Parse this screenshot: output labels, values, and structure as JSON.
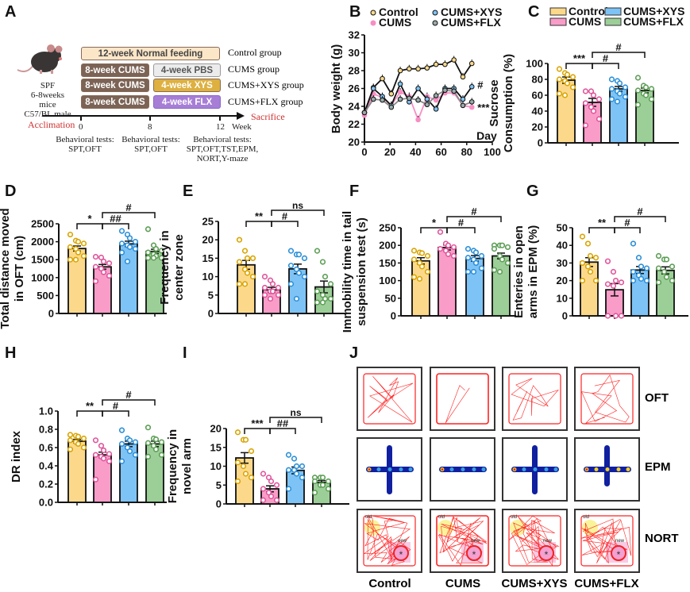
{
  "panel_labels": [
    "A",
    "B",
    "C",
    "D",
    "E",
    "F",
    "G",
    "H",
    "I",
    "J"
  ],
  "colors": {
    "Control": "#FCD98A",
    "CUMS": "#F99CC8",
    "CUMS+XYS": "#7EC3F5",
    "CUMS+FLX": "#9CCF98",
    "Control_dot": "#D9A400",
    "CUMS_dot": "#E0559B",
    "XYS_dot": "#2A8FD8",
    "FLX_dot": "#5C9E55"
  },
  "schematic": {
    "mouse_info": [
      "SPF",
      "6-8weeks mice",
      "C57/BL male"
    ],
    "rows": [
      {
        "boxes": [
          "12-week Normal feeding"
        ],
        "group": "Control group"
      },
      {
        "boxes": [
          "8-week CUMS",
          "4-week PBS"
        ],
        "group": "CUMS group"
      },
      {
        "boxes": [
          "8-week CUMS",
          "4-week XYS"
        ],
        "group": "CUMS+XYS group"
      },
      {
        "boxes": [
          "8-week CUMS",
          "4-week FLX"
        ],
        "group": "CUMS+FLX group"
      }
    ],
    "timeline": {
      "start": "Acclimation",
      "end": "Sacrifice",
      "ticks": [
        "0",
        "8",
        "12"
      ],
      "unit": "Week"
    },
    "tests": [
      [
        "Behavioral tests:",
        "SPT,OFT"
      ],
      [
        "Behavioral tests:",
        "SPT,OFT"
      ],
      [
        "Behavioral tests:",
        "SPT,OFT,TST,EPM,",
        "NORT,Y-maze"
      ]
    ]
  },
  "chart_data": [
    {
      "panel": "B",
      "type": "line",
      "xlabel": "Day",
      "ylabel": "Body weight (g)",
      "xlim": [
        0,
        100
      ],
      "xticks": [
        0,
        20,
        40,
        60,
        80,
        100
      ],
      "ylim": [
        20,
        32
      ],
      "yticks": [
        20,
        22,
        24,
        26,
        28,
        30,
        32
      ],
      "x": [
        0,
        7,
        14,
        21,
        28,
        35,
        42,
        49,
        56,
        63,
        70,
        77,
        84
      ],
      "series": [
        {
          "name": "Control",
          "values": [
            23.3,
            26.1,
            27.1,
            25.4,
            28.0,
            28.2,
            28.2,
            28.3,
            28.7,
            28.7,
            29.2,
            27.3,
            28.8
          ]
        },
        {
          "name": "CUMS",
          "values": [
            23.0,
            25.4,
            25.0,
            24.1,
            25.6,
            25.1,
            22.5,
            25.1,
            24.7,
            25.5,
            25.5,
            24.1,
            23.9
          ]
        },
        {
          "name": "CUMS+XYS",
          "values": [
            23.3,
            26.0,
            25.1,
            24.1,
            26.5,
            24.5,
            26.0,
            24.8,
            23.7,
            26.0,
            26.0,
            24.8,
            26.2
          ]
        },
        {
          "name": "CUMS+FLX",
          "values": [
            23.3,
            24.8,
            24.7,
            23.9,
            24.8,
            24.9,
            24.7,
            24.2,
            25.2,
            25.8,
            25.7,
            24.1,
            24.5
          ]
        }
      ],
      "annotations": [
        {
          "series": "CUMS+XYS",
          "text": "#"
        },
        {
          "series": "CUMS",
          "text": "***"
        }
      ],
      "legend": "top"
    },
    {
      "panel": "C",
      "type": "bar",
      "categories": [
        "Control",
        "CUMS",
        "CUMS+XYS",
        "CUMS+FLX"
      ],
      "ylabel": [
        "Sucrose",
        "Consumption (%)"
      ],
      "ylim": [
        0,
        100
      ],
      "yticks": [
        0,
        20,
        40,
        60,
        80,
        100
      ],
      "values": [
        79,
        51,
        68,
        66
      ],
      "errors": [
        4,
        5,
        3,
        3
      ],
      "points": [
        [
          93,
          88,
          86,
          83,
          80,
          78,
          75,
          70,
          62,
          60
        ],
        [
          65,
          65,
          60,
          55,
          50,
          45,
          40,
          30,
          22
        ],
        [
          80,
          78,
          75,
          70,
          68,
          65,
          62,
          58,
          55,
          52
        ],
        [
          82,
          72,
          70,
          68,
          66,
          62,
          60,
          55,
          48
        ]
      ],
      "significance": [
        {
          "from": 0,
          "to": 1,
          "label": "***"
        },
        {
          "from": 1,
          "to": 2,
          "label": "#"
        },
        {
          "from": 1,
          "to": 3,
          "label": "#"
        }
      ],
      "legend": "top"
    },
    {
      "panel": "D",
      "type": "bar",
      "categories": [
        "Control",
        "CUMS",
        "CUMS+XYS",
        "CUMS+FLX"
      ],
      "ylabel": [
        "Total distance moved",
        "in OFT (cm)"
      ],
      "ylim": [
        0,
        2500
      ],
      "yticks": [
        0,
        500,
        1000,
        1500,
        2000,
        2500
      ],
      "values": [
        1810,
        1300,
        1940,
        1730
      ],
      "errors": [
        70,
        65,
        75,
        60
      ],
      "points": [
        [
          2200,
          2030,
          2000,
          1950,
          1850,
          1800,
          1700,
          1600,
          1500,
          1500
        ],
        [
          1580,
          1560,
          1450,
          1400,
          1300,
          1250,
          1150,
          1050,
          900
        ],
        [
          2300,
          2200,
          2100,
          2000,
          1950,
          1900,
          1850,
          1800,
          1700,
          1450
        ],
        [
          2350,
          1900,
          1800,
          1750,
          1700,
          1650,
          1600,
          1550,
          1550,
          1550
        ]
      ],
      "significance": [
        {
          "from": 0,
          "to": 1,
          "label": "*"
        },
        {
          "from": 1,
          "to": 2,
          "label": "##"
        },
        {
          "from": 1,
          "to": 3,
          "label": "#"
        }
      ]
    },
    {
      "panel": "E",
      "type": "bar",
      "categories": [
        "Control",
        "CUMS",
        "CUMS+XYS",
        "CUMS+FLX"
      ],
      "ylabel": [
        "Frequency in",
        "center zone"
      ],
      "ylim": [
        0,
        25
      ],
      "yticks": [
        0,
        5,
        10,
        15,
        20,
        25
      ],
      "values": [
        13.2,
        6.4,
        12.1,
        7.2
      ],
      "errors": [
        1.2,
        0.7,
        1.3,
        1.6
      ],
      "points": [
        [
          20,
          17,
          15,
          15,
          14,
          12,
          11,
          10,
          8,
          8
        ],
        [
          10,
          9,
          8,
          7,
          7,
          6,
          6,
          5,
          5,
          4
        ],
        [
          17,
          16,
          16,
          15,
          13,
          12,
          11,
          10,
          8,
          4
        ],
        [
          17,
          14,
          10,
          8,
          6,
          5,
          4,
          4,
          3,
          3
        ]
      ],
      "significance": [
        {
          "from": 0,
          "to": 1,
          "label": "**"
        },
        {
          "from": 1,
          "to": 2,
          "label": "#"
        },
        {
          "from": 1,
          "to": 3,
          "label": "ns"
        }
      ]
    },
    {
      "panel": "F",
      "type": "bar",
      "categories": [
        "Control",
        "CUMS",
        "CUMS+XYS",
        "CUMS+FLX"
      ],
      "ylabel": [
        "Immobility time in tail",
        "suspension test (s)"
      ],
      "ylim": [
        0,
        250
      ],
      "yticks": [
        0,
        50,
        100,
        150,
        200,
        250
      ],
      "values": [
        156,
        194,
        163,
        170
      ],
      "errors": [
        9,
        7,
        8,
        8
      ],
      "points": [
        [
          185,
          180,
          178,
          170,
          160,
          150,
          140,
          125,
          110,
          105
        ],
        [
          238,
          205,
          200,
          195,
          190,
          185,
          175,
          170
        ],
        [
          190,
          185,
          180,
          170,
          165,
          160,
          150,
          135,
          125,
          125
        ],
        [
          200,
          200,
          200,
          195,
          190,
          170,
          160,
          150,
          130,
          125
        ]
      ],
      "significance": [
        {
          "from": 0,
          "to": 1,
          "label": "*"
        },
        {
          "from": 1,
          "to": 2,
          "label": "#"
        },
        {
          "from": 1,
          "to": 3,
          "label": "#"
        }
      ]
    },
    {
      "panel": "G",
      "type": "bar",
      "categories": [
        "Control",
        "CUMS",
        "CUMS+XYS",
        "CUMS+FLX"
      ],
      "ylabel": [
        "Enteries in open",
        "arms in EPM (%)"
      ],
      "ylim": [
        0,
        50
      ],
      "yticks": [
        0,
        10,
        20,
        30,
        40,
        50
      ],
      "values": [
        30.5,
        14.8,
        26,
        25.8
      ],
      "errors": [
        2.5,
        3.5,
        2,
        2
      ],
      "points": [
        [
          45,
          41,
          34,
          33,
          30,
          28,
          25,
          20,
          20
        ],
        [
          31,
          25,
          20,
          19,
          18,
          17,
          0,
          0,
          0
        ],
        [
          41,
          33,
          28,
          27,
          25,
          23,
          21,
          20,
          20
        ],
        [
          34,
          32,
          32,
          28,
          27,
          25,
          22,
          20,
          19
        ]
      ],
      "significance": [
        {
          "from": 0,
          "to": 1,
          "label": "**"
        },
        {
          "from": 1,
          "to": 2,
          "label": "#"
        },
        {
          "from": 1,
          "to": 3,
          "label": "#"
        }
      ]
    },
    {
      "panel": "H",
      "type": "bar",
      "categories": [
        "Control",
        "CUMS",
        "CUMS+XYS",
        "CUMS+FLX"
      ],
      "ylabel": [
        "DR index"
      ],
      "ylim": [
        0,
        1.0
      ],
      "yticks": [
        0.0,
        0.2,
        0.4,
        0.6,
        0.8,
        1.0
      ],
      "values": [
        0.67,
        0.52,
        0.64,
        0.64
      ],
      "errors": [
        0.02,
        0.03,
        0.03,
        0.03
      ],
      "points": [
        [
          0.74,
          0.73,
          0.72,
          0.7,
          0.68,
          0.66,
          0.64,
          0.6,
          0.58
        ],
        [
          0.68,
          0.62,
          0.57,
          0.53,
          0.52,
          0.5,
          0.48,
          0.45,
          0.25
        ],
        [
          0.79,
          0.7,
          0.68,
          0.66,
          0.64,
          0.6,
          0.56,
          0.52,
          0.45
        ],
        [
          0.82,
          0.7,
          0.69,
          0.66,
          0.65,
          0.62,
          0.58,
          0.52,
          0.5
        ]
      ],
      "significance": [
        {
          "from": 0,
          "to": 1,
          "label": "**"
        },
        {
          "from": 1,
          "to": 2,
          "label": "#"
        },
        {
          "from": 1,
          "to": 3,
          "label": "#"
        }
      ]
    },
    {
      "panel": "I",
      "type": "bar",
      "categories": [
        "Control",
        "CUMS",
        "CUMS+XYS",
        "CUMS+FLX"
      ],
      "ylabel": [
        "Frequency in",
        "novel arm"
      ],
      "ylim": [
        0,
        20
      ],
      "yticks": [
        0,
        5,
        10,
        15,
        20
      ],
      "values": [
        12.2,
        4.0,
        8.9,
        5.7
      ],
      "errors": [
        1.4,
        0.8,
        0.9,
        0.5
      ],
      "points": [
        [
          19,
          17,
          17,
          14,
          11,
          10,
          8,
          7,
          6
        ],
        [
          8,
          7,
          6,
          5,
          4,
          3,
          2,
          1,
          1
        ],
        [
          13,
          12,
          10,
          10,
          9,
          9,
          8,
          7,
          4
        ],
        [
          7,
          7,
          7,
          6,
          6,
          5,
          5,
          4,
          3
        ]
      ],
      "significance": [
        {
          "from": 0,
          "to": 1,
          "label": "***"
        },
        {
          "from": 1,
          "to": 2,
          "label": "##"
        },
        {
          "from": 1,
          "to": 3,
          "label": "ns"
        }
      ]
    }
  ],
  "tracks": {
    "rows": [
      "OFT",
      "EPM",
      "NORT"
    ],
    "columns": [
      "Control",
      "CUMS",
      "CUMS+XYS",
      "CUMS+FLX"
    ],
    "nort_labels": {
      "old": "old",
      "new": "new",
      "mark": "*"
    }
  }
}
